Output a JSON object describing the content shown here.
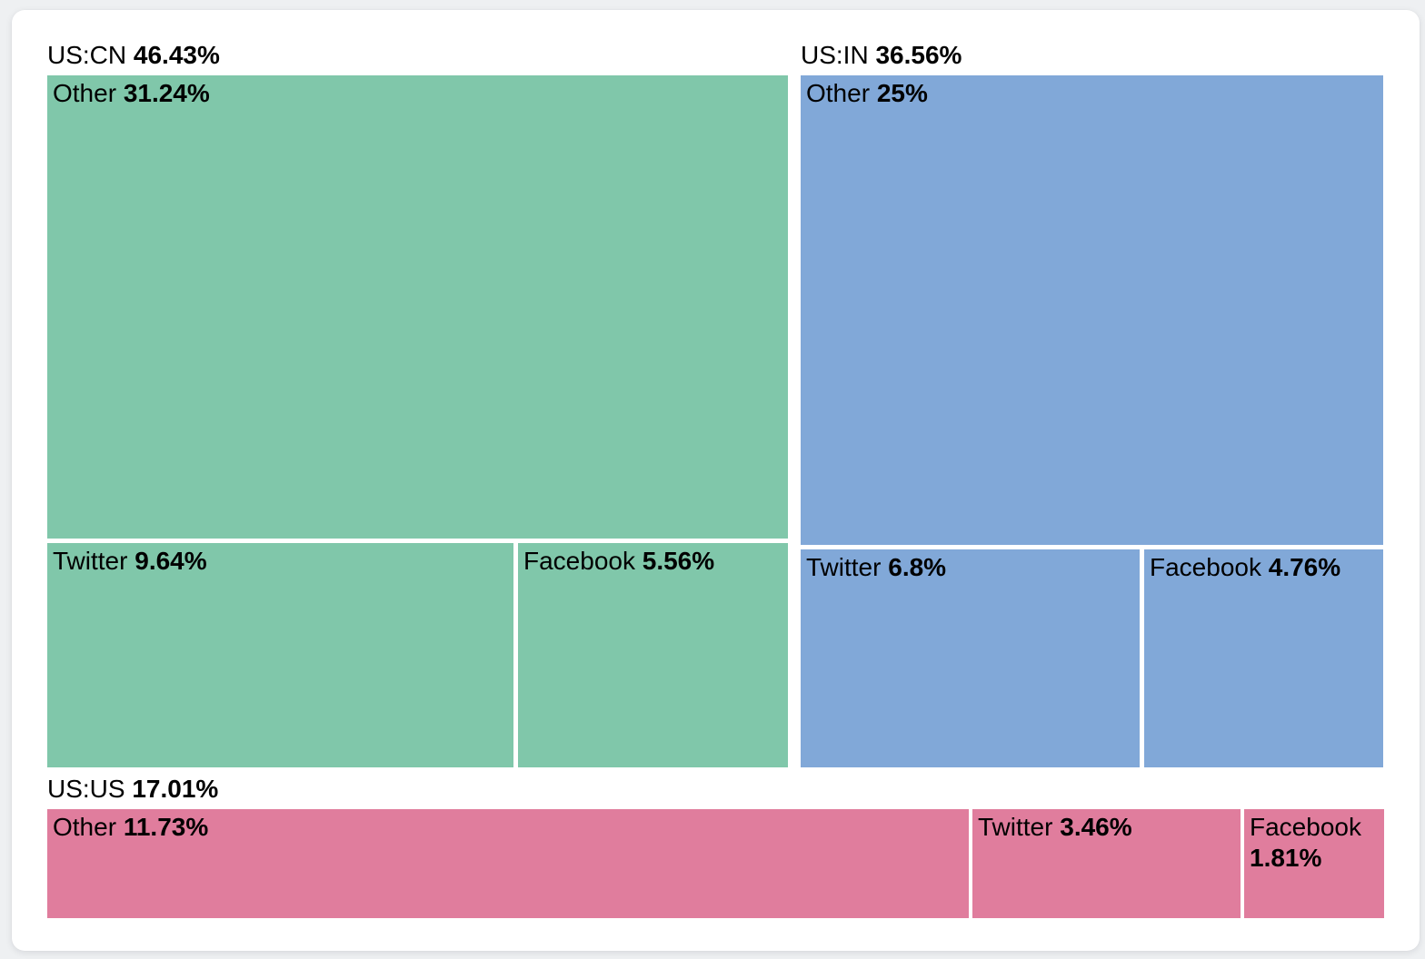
{
  "colors": {
    "page_background": "#eef0f2",
    "card_background": "#ffffff",
    "text": "#000000"
  },
  "chart_data": {
    "type": "treemap",
    "unit": "%",
    "groups": [
      {
        "id": "us-cn",
        "label": "US:CN",
        "value": 46.43,
        "value_label": "46.43%",
        "color": "#80c7aa",
        "children": [
          {
            "label": "Other",
            "value": 31.24,
            "value_label": "31.24%"
          },
          {
            "label": "Twitter",
            "value": 9.64,
            "value_label": "9.64%"
          },
          {
            "label": "Facebook",
            "value": 5.56,
            "value_label": "5.56%"
          }
        ]
      },
      {
        "id": "us-in",
        "label": "US:IN",
        "value": 36.56,
        "value_label": "36.56%",
        "color": "#81a8d8",
        "children": [
          {
            "label": "Other",
            "value": 25,
            "value_label": "25%"
          },
          {
            "label": "Twitter",
            "value": 6.8,
            "value_label": "6.8%"
          },
          {
            "label": "Facebook",
            "value": 4.76,
            "value_label": "4.76%"
          }
        ]
      },
      {
        "id": "us-us",
        "label": "US:US",
        "value": 17.01,
        "value_label": "17.01%",
        "color": "#e07d9d",
        "children": [
          {
            "label": "Other",
            "value": 11.73,
            "value_label": "11.73%"
          },
          {
            "label": "Twitter",
            "value": 3.46,
            "value_label": "3.46%"
          },
          {
            "label": "Facebook",
            "value": 1.81,
            "value_label": "1.81%"
          }
        ]
      }
    ]
  }
}
